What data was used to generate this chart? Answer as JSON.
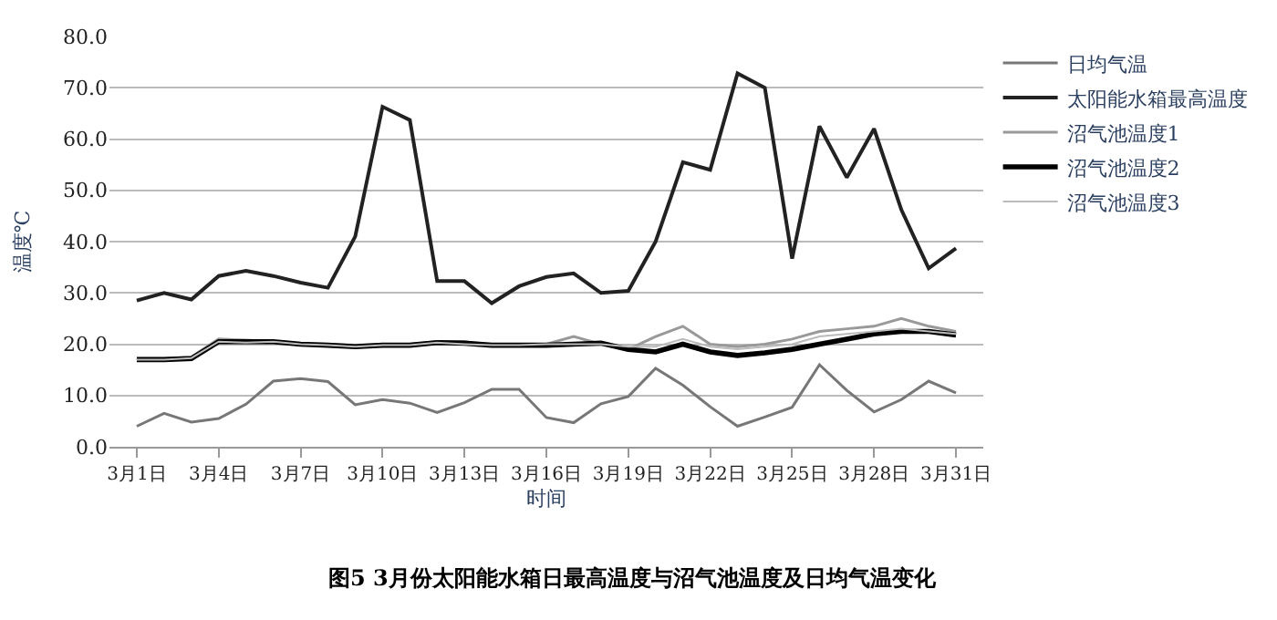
{
  "chart_data": {
    "type": "line",
    "xlabel": "时间",
    "ylabel": "温度℃",
    "categories": [
      "3月1日",
      null,
      null,
      "3月4日",
      null,
      null,
      "3月7日",
      null,
      null,
      "3月10日",
      null,
      null,
      "3月13日",
      null,
      null,
      "3月16日",
      null,
      null,
      "3月19日",
      null,
      null,
      "3月22日",
      null,
      null,
      "3月25日",
      null,
      null,
      "3月28日",
      null,
      null,
      "3月31日"
    ],
    "series": [
      {
        "name": "日均气温",
        "color": "#777777",
        "values": [
          4,
          6.5,
          4.8,
          5.5,
          8.3,
          12.8,
          13.3,
          12.7,
          8.2,
          9.2,
          8.5,
          6.7,
          8.6,
          11.2,
          11.2,
          5.7,
          4.7,
          8.4,
          9.8,
          15.3,
          12,
          7.8,
          4,
          5.8,
          7.7,
          16,
          11,
          6.8,
          9.2,
          12.8,
          10.5
        ]
      },
      {
        "name": "太阳能水箱最高温度",
        "color": "#222222",
        "values": [
          28.5,
          30,
          28.7,
          33.3,
          34.3,
          33.3,
          32,
          31,
          41,
          66.3,
          63.7,
          32.3,
          32.3,
          28,
          31.3,
          33.1,
          33.8,
          30,
          30.4,
          40,
          55.5,
          54,
          72.8,
          70,
          36.7,
          62.5,
          52.5,
          62,
          46.2,
          34.8,
          38.7
        ]
      },
      {
        "name": "沼气池温度1",
        "color": "#999999",
        "values": [
          17.2,
          17.2,
          17.5,
          21,
          20.8,
          20.5,
          20,
          20,
          19.8,
          20,
          20,
          20.5,
          20.5,
          19.8,
          20,
          20,
          21.5,
          20,
          19,
          21.5,
          23.5,
          20,
          19.5,
          20,
          21,
          22.5,
          23,
          23.5,
          25,
          23.5,
          22.5
        ]
      },
      {
        "name": "沼气池温度2",
        "color": "#000000",
        "values": [
          17,
          17,
          17.2,
          20.5,
          20.5,
          20.5,
          20,
          19.8,
          19.5,
          19.8,
          19.8,
          20.3,
          20.2,
          19.8,
          19.8,
          19.8,
          20,
          20.2,
          19,
          18.5,
          20,
          18.5,
          17.8,
          18.3,
          19,
          20,
          21,
          22,
          22.5,
          22.5,
          21.8
        ]
      },
      {
        "name": "沼气池温度3",
        "color": "#bbbbbb",
        "values": [
          17,
          17,
          17.3,
          20.5,
          20.3,
          20.5,
          20,
          19.8,
          19.5,
          19.8,
          19.8,
          20.3,
          20,
          19.8,
          19.8,
          20,
          20,
          20,
          19.5,
          19.5,
          21,
          19.5,
          19,
          19.5,
          20,
          21.5,
          22,
          22.5,
          23,
          22.5,
          22
        ]
      }
    ],
    "ylim": [
      0,
      80
    ],
    "yticks": [
      {
        "value": 0,
        "label": "0.0"
      },
      {
        "value": 10,
        "label": "10.0"
      },
      {
        "value": 20,
        "label": "20.0"
      },
      {
        "value": 30,
        "label": "30.0"
      },
      {
        "value": 40,
        "label": "40.0"
      },
      {
        "value": 50,
        "label": "50.0"
      },
      {
        "value": 60,
        "label": "60.0"
      },
      {
        "value": 70,
        "label": "70.0"
      },
      {
        "value": 80,
        "label": "80.0"
      }
    ],
    "grid": "y",
    "legend": "top right",
    "marker": "none",
    "line_style": "solid",
    "annotations": [
      "图5 3月份太阳能水箱日最高温度与沼气池温度及日均气温变化"
    ]
  }
}
